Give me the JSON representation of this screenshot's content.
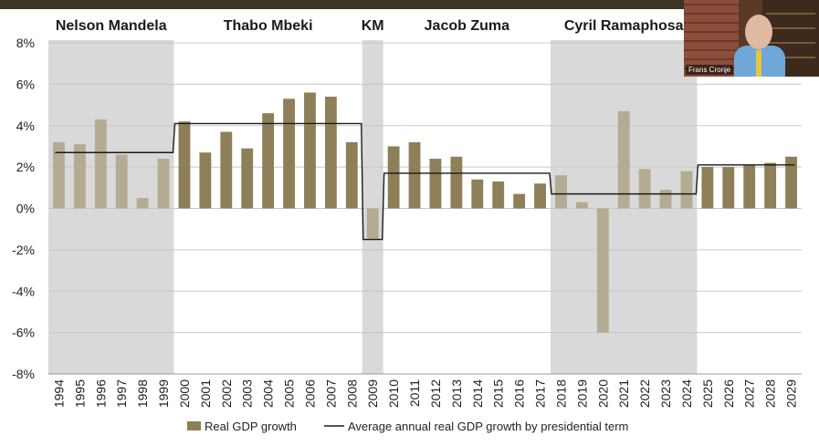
{
  "chart_data": {
    "type": "bar",
    "categories": [
      "1994",
      "1995",
      "1996",
      "1997",
      "1998",
      "1999",
      "2000",
      "2001",
      "2002",
      "2003",
      "2004",
      "2005",
      "2006",
      "2007",
      "2008",
      "2009",
      "2010",
      "2011",
      "2012",
      "2013",
      "2014",
      "2015",
      "2016",
      "2017",
      "2018",
      "2019",
      "2020",
      "2021",
      "2022",
      "2023",
      "2024",
      "2025",
      "2026",
      "2027",
      "2028",
      "2029"
    ],
    "ylim": [
      -8,
      8
    ],
    "yticks": [
      8,
      6,
      4,
      2,
      0,
      -2,
      -4,
      -6,
      -8
    ],
    "ytick_labels": [
      "8%",
      "6%",
      "4%",
      "2%",
      "0%",
      "-2%",
      "-4%",
      "-6%",
      "-8%"
    ],
    "grid": true,
    "legend_position": "bottom",
    "terms": [
      {
        "label": "Nelson Mandela",
        "start": "1994",
        "end": "1999",
        "shaded": true
      },
      {
        "label": "Thabo Mbeki",
        "start": "2000",
        "end": "2008",
        "shaded": false
      },
      {
        "label": "KM",
        "start": "2009",
        "end": "2009",
        "shaded": true
      },
      {
        "label": "Jacob Zuma",
        "start": "2010",
        "end": "2017",
        "shaded": false
      },
      {
        "label": "Cyril Ramaphosa",
        "start": "2018",
        "end": "2024",
        "shaded": true
      },
      {
        "label": "",
        "start": "2025",
        "end": "2029",
        "shaded": false
      }
    ],
    "series": [
      {
        "name": "Real GDP growth",
        "kind": "bar",
        "color": "#8d7f58",
        "shaded_color": "#b3ab93",
        "values": [
          3.2,
          3.1,
          4.3,
          2.6,
          0.5,
          2.4,
          4.2,
          2.7,
          3.7,
          2.9,
          4.6,
          5.3,
          5.6,
          5.4,
          3.2,
          -1.5,
          3.0,
          3.2,
          2.4,
          2.5,
          1.4,
          1.3,
          0.7,
          1.2,
          1.6,
          0.3,
          -6.0,
          4.7,
          1.9,
          0.9,
          1.8,
          2.0,
          2.0,
          2.1,
          2.2,
          2.5
        ]
      },
      {
        "name": "Average annual real GDP growth by presidential term",
        "kind": "step-line",
        "color": "#1a1a1a",
        "segments": [
          {
            "start": "1994",
            "end": "1999",
            "value": 2.7
          },
          {
            "start": "2000",
            "end": "2008",
            "value": 4.1
          },
          {
            "start": "2009",
            "end": "2009",
            "value": -1.5
          },
          {
            "start": "2010",
            "end": "2017",
            "value": 1.7
          },
          {
            "start": "2018",
            "end": "2024",
            "value": 0.7
          },
          {
            "start": "2025",
            "end": "2029",
            "value": 2.1
          }
        ]
      }
    ]
  },
  "video_overlay": {
    "name": "Frans Cronje"
  }
}
